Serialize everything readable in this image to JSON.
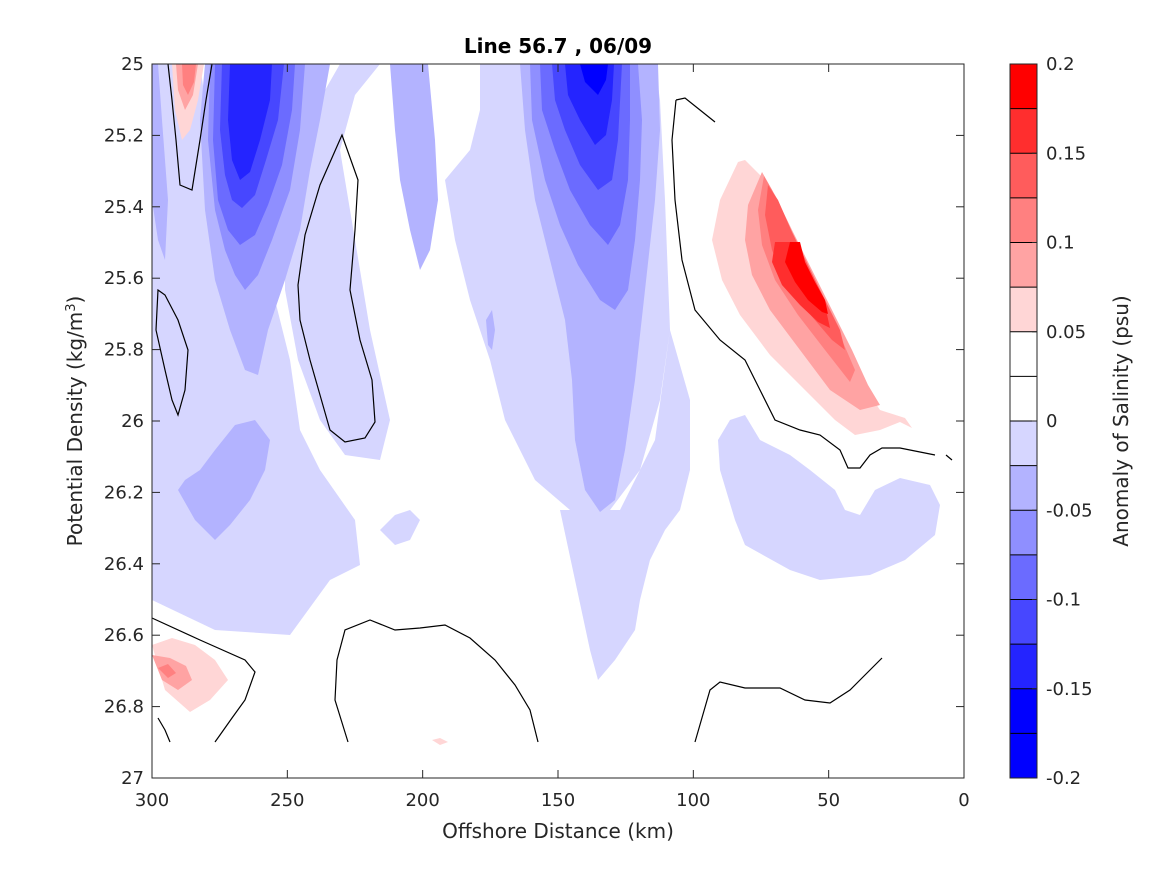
{
  "chart_data": {
    "type": "contour",
    "title": "Line 56.7 , 06/09",
    "xlabel": "Offshore Distance (km)",
    "ylabel_main": "Potential Density (kg/m",
    "ylabel_sup": "3",
    "ylabel_close": ")",
    "colorbar_label": "Anomaly of Salinity (psu)",
    "xlim": [
      300,
      0
    ],
    "ylim": [
      25,
      27
    ],
    "x_ticks": [
      300,
      250,
      200,
      150,
      100,
      50,
      0
    ],
    "y_ticks": [
      25,
      25.2,
      25.4,
      25.6,
      25.8,
      26,
      26.2,
      26.4,
      26.6,
      26.8,
      27
    ],
    "x_tick_labels": [
      "300",
      "250",
      "200",
      "150",
      "100",
      "50",
      "0"
    ],
    "y_tick_labels": [
      "25",
      "25.2",
      "25.4",
      "25.6",
      "25.8",
      "26",
      "26.2",
      "26.4",
      "26.6",
      "26.8",
      "27"
    ],
    "colorbar_ticks": [
      0.2,
      0.15,
      0.1,
      0.05,
      0,
      -0.05,
      -0.1,
      -0.15,
      -0.2
    ],
    "colorbar_tick_labels": [
      "0.2",
      "0.15",
      "0.1",
      "0.05",
      "0",
      "-0.05",
      "-0.1",
      "-0.15",
      "-0.2"
    ],
    "contour_levels": [
      -0.2,
      -0.175,
      -0.15,
      -0.125,
      -0.1,
      -0.075,
      -0.05,
      -0.025,
      0,
      0.025,
      0.05,
      0.075,
      0.1,
      0.125,
      0.15,
      0.175,
      0.2
    ],
    "colorbar_colors": [
      "#ff0000",
      "#ff2e2e",
      "#ff5c5c",
      "#ff8080",
      "#ffa3a3",
      "#ffd6d6",
      "#ffffff",
      "#ffffff",
      "#d6d6ff",
      "#b3b3ff",
      "#8f8fff",
      "#6b6bff",
      "#4747ff",
      "#2424ff",
      "#0000ff",
      "#0000ff"
    ],
    "max_positive_anomaly_region": {
      "distance_km": 60,
      "density": 25.6,
      "value": 0.15
    },
    "max_negative_anomaly_regions": [
      {
        "distance_km": 265,
        "density": 25.2,
        "value": -0.15
      },
      {
        "distance_km": 135,
        "density": 25.05,
        "value": -0.175
      }
    ],
    "grid": false
  }
}
